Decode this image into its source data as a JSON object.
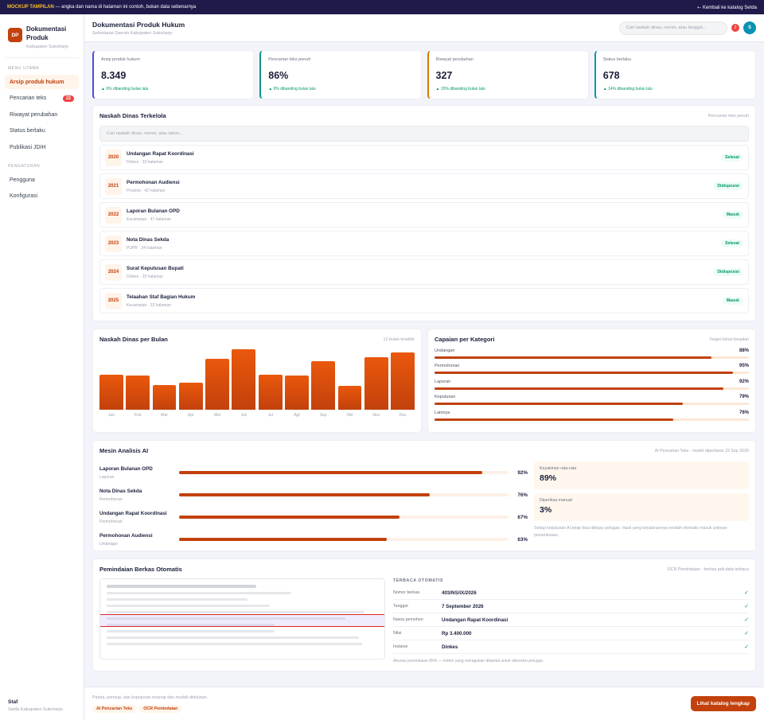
{
  "banner": {
    "tag": "MOCKUP TAMPILAN",
    "text": "— angka dan nama di halaman ini contoh, bukan data sebenarnya",
    "back": "⇠ Kembali ke katalog Setda"
  },
  "brand": {
    "initials": "DP",
    "name": "Dokumentasi Produk",
    "sub": "Kabupaten Sukoharjo"
  },
  "sidebar": {
    "section1": "MENU UTAMA",
    "section2": "PENGATURAN",
    "items": [
      {
        "label": "Arsip produk hukum",
        "active": true
      },
      {
        "label": "Pencarian teks",
        "badge": "22"
      },
      {
        "label": "Riwayat perubahan"
      },
      {
        "label": "Status berlaku"
      },
      {
        "label": "Publikasi JDIH"
      }
    ],
    "settings": [
      {
        "label": "Pengguna"
      },
      {
        "label": "Konfigurasi"
      }
    ],
    "user": {
      "name": "Staf",
      "unit": "Setda Kabupaten Sukoharjo"
    }
  },
  "header": {
    "title": "Dokumentasi Produk Hukum",
    "subtitle": "Sekretariat Daerah Kabupaten Sukoharjo",
    "search_placeholder": "Cari naskah dinas, nomor, atau tanggal...",
    "notif": "2",
    "avatar": "S"
  },
  "stats": [
    {
      "label": "Arsip produk hukum",
      "value": "8.349",
      "delta": "▲ 6% dibanding bulan lalu",
      "color": "#4f46e5"
    },
    {
      "label": "Pencarian teks penuh",
      "value": "86%",
      "delta": "▲ 9% dibanding bulan lalu",
      "color": "#0d9488"
    },
    {
      "label": "Riwayat perubahan",
      "value": "327",
      "delta": "▲ 15% dibanding bulan lalu",
      "color": "#d97706"
    },
    {
      "label": "Status berlaku",
      "value": "678",
      "delta": "▲ 14% dibanding bulan lalu",
      "color": "#0891b2"
    }
  ],
  "docs": {
    "title": "Naskah Dinas Terkelola",
    "note": "Pencarian teks penuh",
    "search_placeholder": "Cari naskah dinas, nomor, atau tahun...",
    "rows": [
      {
        "year": "2020",
        "name": "Undangan Rapat Koordinasi",
        "meta": "Dinkes · 33 halaman",
        "status": "Selesai"
      },
      {
        "year": "2021",
        "name": "Permohonan Audiensi",
        "meta": "Provinsi · 42 halaman",
        "status": "Didisposisi"
      },
      {
        "year": "2022",
        "name": "Laporan Bulanan OPD",
        "meta": "Kecamatan · 47 halaman",
        "status": "Masuk"
      },
      {
        "year": "2023",
        "name": "Nota Dinas Sekda",
        "meta": "PUPR · 24 halaman",
        "status": "Selesai"
      },
      {
        "year": "2024",
        "name": "Surat Keputusan Bupati",
        "meta": "Dinkes · 29 halaman",
        "status": "Didisposisi"
      },
      {
        "year": "2025",
        "name": "Telaahan Staf Bagian Hukum",
        "meta": "Kecamatan · 33 halaman",
        "status": "Masuk"
      }
    ]
  },
  "chart": {
    "title": "Naskah Dinas per Bulan",
    "note": "12 bulan terakhir"
  },
  "chart_data": {
    "type": "bar",
    "categories": [
      "Jan",
      "Feb",
      "Mar",
      "Apr",
      "Mei",
      "Jun",
      "Jul",
      "Agt",
      "Sep",
      "Okt",
      "Nov",
      "Des"
    ],
    "values": [
      58,
      56,
      41,
      45,
      84,
      100,
      58,
      56,
      80,
      40,
      87,
      95
    ],
    "ylim": [
      0,
      100
    ]
  },
  "kategori": {
    "title": "Capaian per Kategori",
    "note": "Target tahun berjalan",
    "items": [
      {
        "label": "Undangan",
        "pct": "88%",
        "value": 88
      },
      {
        "label": "Permohonan",
        "pct": "95%",
        "value": 95
      },
      {
        "label": "Laporan",
        "pct": "92%",
        "value": 92
      },
      {
        "label": "Keputusan",
        "pct": "79%",
        "value": 79
      },
      {
        "label": "Lainnya",
        "pct": "76%",
        "value": 76
      }
    ]
  },
  "ai": {
    "title": "Mesin Analisis AI",
    "note": "AI Pencarian Teks · model diperbarui 23 Sep 2026",
    "rows": [
      {
        "name": "Laporan Bulanan OPD",
        "cat": "Laporan",
        "pct": "92%",
        "value": 92
      },
      {
        "name": "Nota Dinas Sekda",
        "cat": "Permohonan",
        "pct": "76%",
        "value": 76
      },
      {
        "name": "Undangan Rapat Koordinasi",
        "cat": "Permohonan",
        "pct": "67%",
        "value": 67
      },
      {
        "name": "Permohonan Audiensi",
        "cat": "Undangan",
        "pct": "63%",
        "value": 63
      }
    ],
    "box1_label": "Keyakinan rata-rata",
    "box1_value": "89%",
    "box2_label": "Diperiksa manual",
    "box2_value": "3%",
    "footnote": "Setiap keputusan AI tetap bisa ditinjau petugas. Hasil yang keyakinannya rendah otomatis masuk antrean pemeriksaan."
  },
  "ocr": {
    "title": "Pemindaian Berkas Otomatis",
    "note": "OCR Pemindaian · berkas jadi data terbaca",
    "heading": "TERBACA OTOMATIS",
    "fields": [
      {
        "k": "Nomor berkas",
        "v": "403/NS/IX/2026"
      },
      {
        "k": "Tanggal",
        "v": "7 September 2026"
      },
      {
        "k": "Nama pemohon",
        "v": "Undangan Rapat Koordinasi"
      },
      {
        "k": "Nilai",
        "v": "Rp 3.400.000"
      },
      {
        "k": "Instansi",
        "v": "Dinkes"
      }
    ],
    "check": "✓",
    "footnote": "Akurasi pemindaian 85% — kolom yang meragukan ditandai untuk dikoreksi petugas."
  },
  "footer": {
    "text": "Panda, portsup, dan keputusan terarsip dan mudah ditelusuri.",
    "tags": [
      "AI Pencarian Teks",
      "OCR Pemindaian"
    ],
    "button": "Lihat katalog lengkap"
  }
}
